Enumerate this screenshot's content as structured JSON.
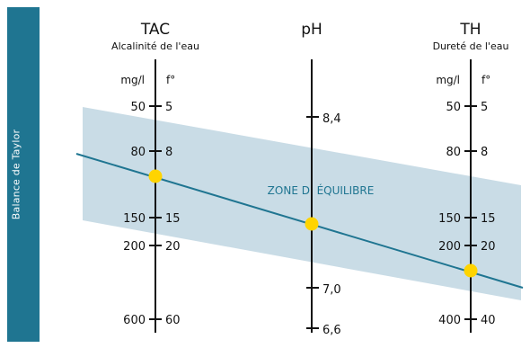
{
  "sidebar": {
    "label": "Balance de Taylor",
    "color": "#1f7591"
  },
  "colors": {
    "band": "#c9dce6",
    "line": "#1f7591",
    "dot": "#ffd400",
    "zone_text": "#1f7591"
  },
  "zone_label": "ZONE D’ ÉQUILIBRE",
  "scales": {
    "tac": {
      "title": "TAC",
      "subtitle": "Alcalinité de l'eau",
      "unit_left": "mg/l",
      "unit_right": "f°",
      "ticks": [
        {
          "left": "50",
          "right": "5"
        },
        {
          "left": "80",
          "right": "8"
        },
        {
          "left": "150",
          "right": "15"
        },
        {
          "left": "200",
          "right": "20"
        },
        {
          "left": "600",
          "right": "60"
        }
      ]
    },
    "ph": {
      "title": "pH",
      "ticks": [
        "8,4",
        "7,0",
        "6,6"
      ]
    },
    "th": {
      "title": "TH",
      "subtitle": "Dureté de l'eau",
      "unit_left": "mg/l",
      "unit_right": "f°",
      "ticks": [
        {
          "left": "50",
          "right": "5"
        },
        {
          "left": "80",
          "right": "8"
        },
        {
          "left": "150",
          "right": "15"
        },
        {
          "left": "200",
          "right": "20"
        },
        {
          "left": "400",
          "right": "40"
        }
      ]
    }
  }
}
